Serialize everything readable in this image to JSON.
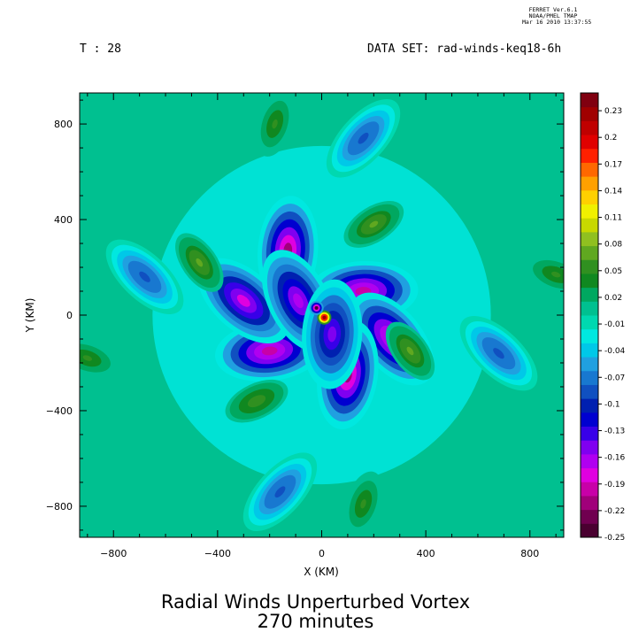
{
  "stamp": {
    "line1": "FERRET  Ver.6.1",
    "line2": "NOAA/PMEL TMAP",
    "line3": "Mar 16 2010 13:37:55"
  },
  "header": {
    "time_label": "T : 28",
    "dataset_label": "DATA SET: rad-winds-keq18-6h"
  },
  "titles": {
    "line1": "Radial Winds Unperturbed Vortex",
    "line2": "270 minutes"
  },
  "chart_data": {
    "type": "heatmap",
    "title": "Radial Winds Unperturbed Vortex",
    "subtitle": "270 minutes",
    "xlabel": "X (KM)",
    "ylabel": "Y (KM)",
    "xlim": [
      -930,
      930
    ],
    "ylim": [
      -930,
      930
    ],
    "xticks": [
      -800,
      -400,
      0,
      400,
      800
    ],
    "yticks": [
      -800,
      -400,
      0,
      400,
      800
    ],
    "colorbar": {
      "levels": [
        -0.25,
        -0.22,
        -0.19,
        -0.16,
        -0.13,
        -0.1,
        -0.07,
        -0.04,
        -0.01,
        0.02,
        0.05,
        0.08,
        0.11,
        0.14,
        0.17,
        0.2,
        0.23
      ],
      "tick_labels": [
        "-0.25",
        "-0.22",
        "-0.19",
        "-0.16",
        "-0.13",
        "-0.1",
        "-0.07",
        "-0.04",
        "-0.01",
        "0.02",
        "0.05",
        "0.08",
        "0.11",
        "0.14",
        "0.17",
        "0.2",
        "0.23"
      ],
      "range": [
        -0.25,
        0.25
      ],
      "colors_low_to_high": [
        "#4a0030",
        "#700050",
        "#a0007a",
        "#c800a8",
        "#e000e0",
        "#b000f0",
        "#8000f0",
        "#3800e8",
        "#0000d0",
        "#0020b0",
        "#1050c0",
        "#1878d0",
        "#20a0e0",
        "#00c8e8",
        "#00e8e0",
        "#00d8b0",
        "#00c090",
        "#00a860",
        "#108820",
        "#309020",
        "#60a820",
        "#90c020",
        "#c8d800",
        "#f0f000",
        "#ffd000",
        "#ffa000",
        "#ff6800",
        "#ff2000",
        "#e00000",
        "#c00000",
        "#a00000",
        "#800010"
      ]
    },
    "features": [
      {
        "kind": "negative-lobe",
        "x": -130,
        "y": 270,
        "peak": -0.21
      },
      {
        "kind": "negative-lobe",
        "x": 160,
        "y": 100,
        "peak": -0.2
      },
      {
        "kind": "negative-lobe",
        "x": 270,
        "y": -100,
        "peak": -0.2
      },
      {
        "kind": "negative-lobe",
        "x": 100,
        "y": -250,
        "peak": -0.21
      },
      {
        "kind": "negative-lobe",
        "x": -200,
        "y": -150,
        "peak": -0.2
      },
      {
        "kind": "negative-lobe",
        "x": -300,
        "y": 60,
        "peak": -0.18
      },
      {
        "kind": "negative-lobe",
        "x": -90,
        "y": 60,
        "peak": -0.17
      },
      {
        "kind": "negative-lobe",
        "x": 40,
        "y": -80,
        "peak": -0.15
      },
      {
        "kind": "negative-band",
        "x": -680,
        "y": 160,
        "peak": -0.09
      },
      {
        "kind": "negative-band",
        "x": 160,
        "y": 740,
        "peak": -0.09
      },
      {
        "kind": "negative-band",
        "x": 680,
        "y": -160,
        "peak": -0.09
      },
      {
        "kind": "negative-band",
        "x": -160,
        "y": -740,
        "peak": -0.09
      },
      {
        "kind": "positive-lobe",
        "x": 200,
        "y": 380,
        "peak": 0.07
      },
      {
        "kind": "positive-lobe",
        "x": -470,
        "y": 220,
        "peak": 0.07
      },
      {
        "kind": "positive-lobe",
        "x": 340,
        "y": -150,
        "peak": 0.07
      },
      {
        "kind": "positive-lobe",
        "x": -250,
        "y": -360,
        "peak": 0.06
      },
      {
        "kind": "positive-lobe",
        "x": -180,
        "y": 800,
        "peak": 0.05
      },
      {
        "kind": "positive-lobe",
        "x": 160,
        "y": -790,
        "peak": 0.05
      },
      {
        "kind": "positive-lobe",
        "x": -900,
        "y": -180,
        "peak": 0.05
      },
      {
        "kind": "positive-lobe",
        "x": 900,
        "y": 170,
        "peak": 0.05
      },
      {
        "kind": "core-max",
        "x": 10,
        "y": -10,
        "peak": 0.23
      },
      {
        "kind": "core-min",
        "x": -20,
        "y": 30,
        "peak": -0.25
      }
    ]
  }
}
